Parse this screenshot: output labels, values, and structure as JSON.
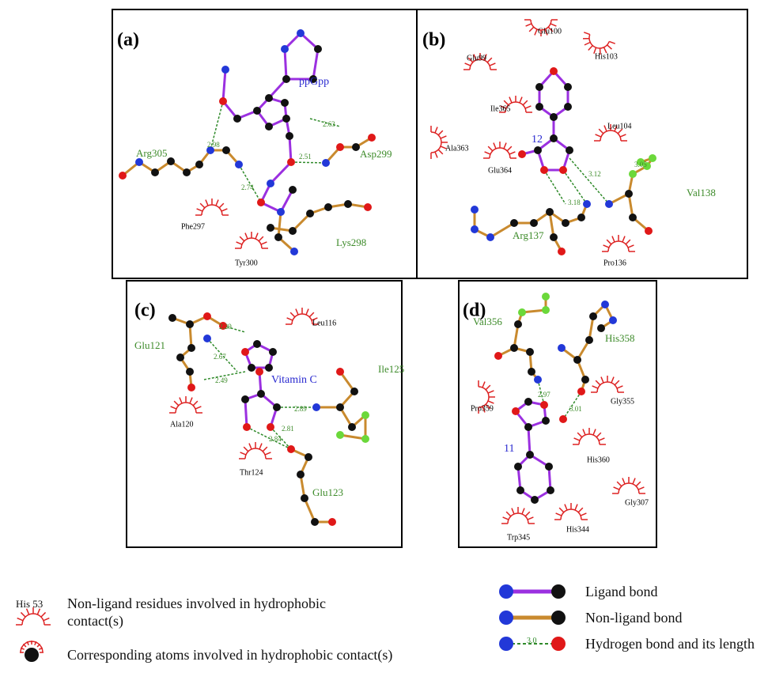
{
  "panels": [
    {
      "label": "(a)",
      "ligand": "ppGpp",
      "residues": [
        "Arg305",
        "Asp299",
        "Lys298",
        "Phe297",
        "Tyr300"
      ],
      "distances": [
        "2.98",
        "2.63",
        "2.51",
        "2.74"
      ]
    },
    {
      "label": "(b)",
      "ligand": "12",
      "residues": [
        "Glu100",
        "Glu99",
        "His103",
        "Ile365",
        "Leu104",
        "Ala363",
        "Glu364",
        "Val138",
        "Arg137",
        "Pro136"
      ],
      "distances": [
        "3.05",
        "3.12",
        "3.18"
      ]
    },
    {
      "label": "(c)",
      "ligand": "Vitamin C",
      "residues": [
        "Glu121",
        "Leu116",
        "Ile125",
        "Ala120",
        "Thr124",
        "Glu123"
      ],
      "distances": [
        "2.29",
        "2.67",
        "2.49",
        "2.89",
        "2.81",
        "2.84"
      ]
    },
    {
      "label": "(d)",
      "ligand": "11",
      "residues": [
        "Val356",
        "His358",
        "Pro359",
        "Gly355",
        "His360",
        "Gly307",
        "Trp345",
        "His344"
      ],
      "distances": [
        "2.97",
        "3.01"
      ]
    }
  ],
  "legend": {
    "hydrophobic_example": "His 53",
    "hydrophobic_residues": "Non-ligand residues involved in hydrophobic contact(s)",
    "hydrophobic_atoms": "Corresponding atoms involved in hydrophobic contact(s)",
    "ligand_bond": "Ligand bond",
    "nonligand_bond": "Non-ligand bond",
    "hbond_example": "3.0",
    "hbond": "Hydrogen bond and its length"
  }
}
